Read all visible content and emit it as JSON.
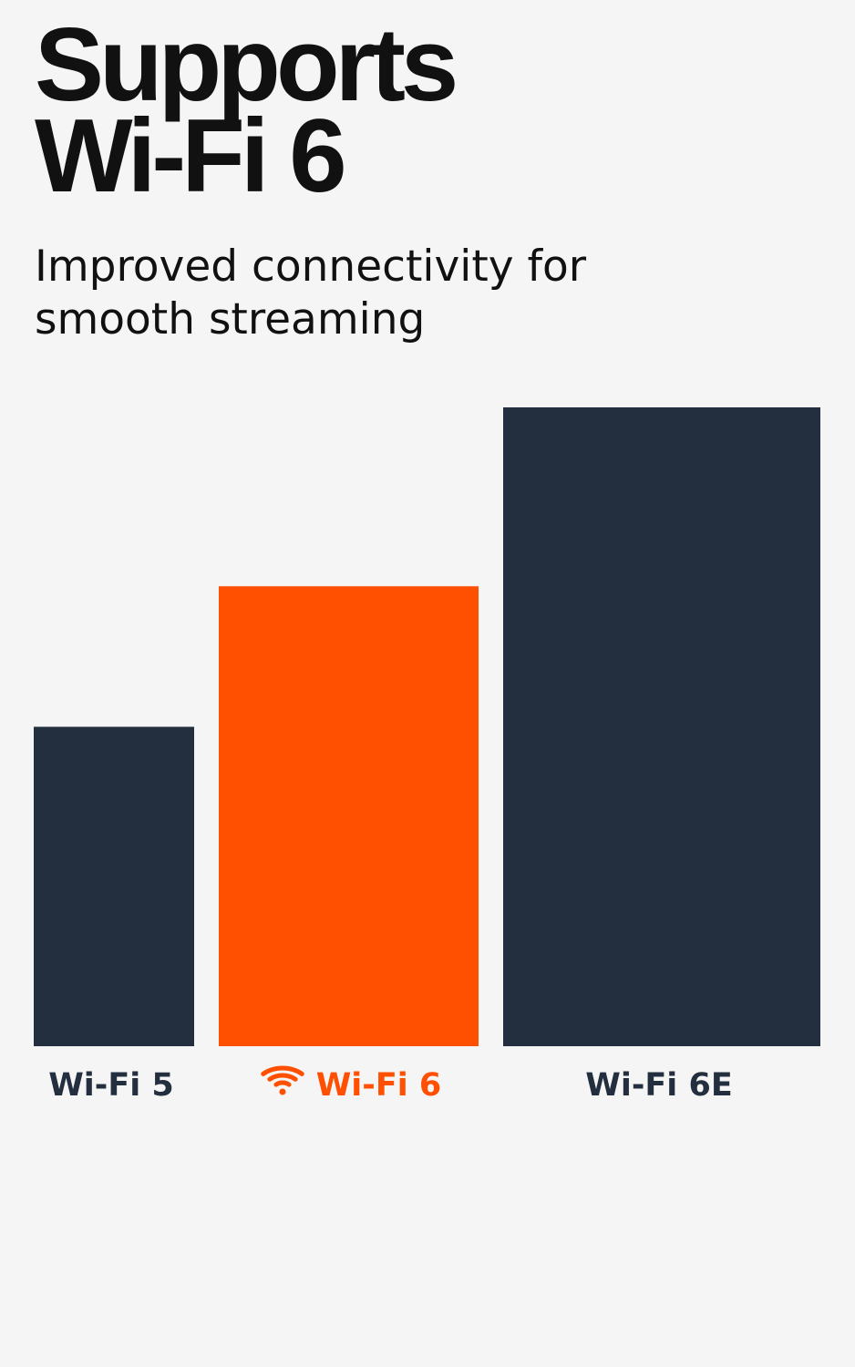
{
  "chart_data": {
    "type": "bar",
    "title": "Supports\nWi-Fi 6",
    "subtitle": "Improved connectivity for\nsmooth streaming",
    "categories": [
      "Wi-Fi 5",
      "Wi-Fi 6",
      "Wi-Fi 6E"
    ],
    "values": [
      50,
      72,
      100
    ],
    "ylim": [
      0,
      100
    ],
    "grid": false,
    "highlight": "Wi-Fi 6",
    "highlight_icon": "wifi-icon",
    "colors": {
      "default": "#232f3e",
      "highlight": "#ff4f00",
      "background": "#f5f5f5",
      "text": "#111111"
    }
  }
}
